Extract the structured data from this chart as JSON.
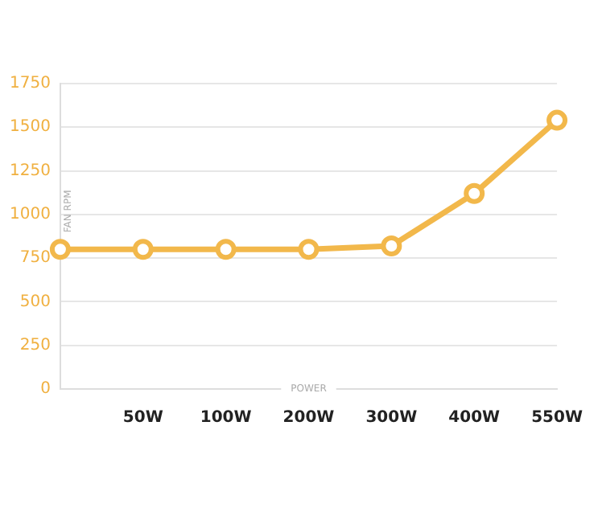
{
  "chart_data": {
    "type": "line",
    "xlabel": "POWER",
    "ylabel": "FAN RPM",
    "categories": [
      null,
      "50W",
      "100W",
      "200W",
      "300W",
      "400W",
      "550W"
    ],
    "series": [
      {
        "color": "#f2b84b",
        "values": [
          800,
          800,
          800,
          800,
          820,
          1120,
          1540
        ]
      }
    ],
    "ylim": [
      0,
      1750
    ],
    "yticks": [
      0,
      250,
      500,
      750,
      1000,
      1250,
      1500,
      1750
    ],
    "grid": "y",
    "legend": false,
    "marker": "circle",
    "line_style": "solid"
  }
}
